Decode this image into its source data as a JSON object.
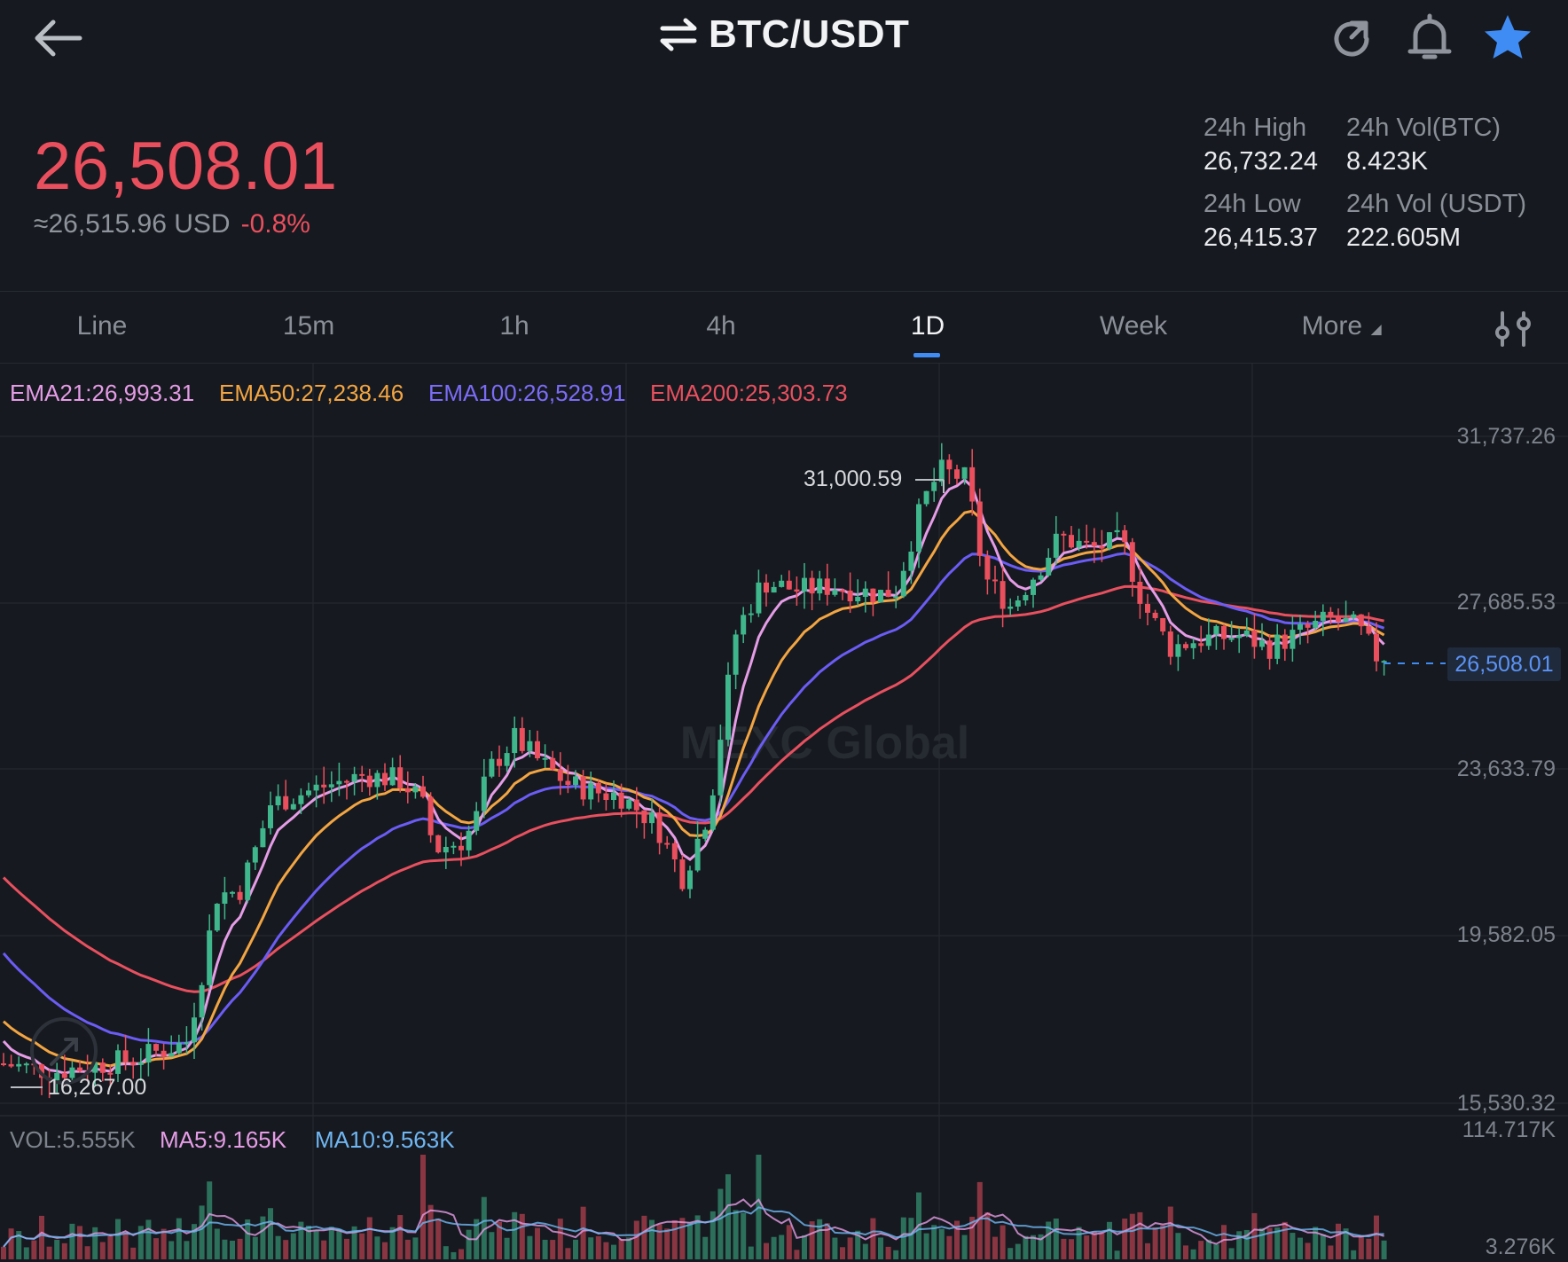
{
  "header": {
    "pair": "BTC/USDT",
    "back_icon": "arrow-left-icon",
    "swap_icon": "swap-arrows-icon",
    "refresh_icon": "refresh-icon",
    "bell_icon": "bell-icon",
    "star_icon": "star-icon"
  },
  "price": {
    "last": "26,508.01",
    "usd_approx": "≈26,515.96 USD",
    "change": "-0.8%"
  },
  "stats": {
    "high_label": "24h High",
    "high_value": "26,732.24",
    "low_label": "24h Low",
    "low_value": "26,415.37",
    "vol_btc_label": "24h Vol(BTC)",
    "vol_btc_value": "8.423K",
    "vol_usdt_label": "24h Vol (USDT)",
    "vol_usdt_value": "222.605M"
  },
  "tabs": {
    "line": "Line",
    "m15": "15m",
    "h1": "1h",
    "h4": "4h",
    "d1": "1D",
    "week": "Week",
    "more": "More",
    "active": "1D",
    "settings_icon": "indicator-settings-icon"
  },
  "ema_legend": {
    "ema21": "EMA21:26,993.31",
    "ema50": "EMA50:27,238.46",
    "ema100": "EMA100:26,528.91",
    "ema200": "EMA200:25,303.73"
  },
  "colors": {
    "up": "#3fb68b",
    "down": "#ea4f5e",
    "ema21": "#e59ce6",
    "ema50": "#f2a542",
    "ema100": "#6b5cf5",
    "ema200": "#e8505f",
    "ma5": "#e59ce6",
    "ma10": "#6fb6f2",
    "accent": "#3f8cf5"
  },
  "axis": {
    "y_labels": [
      "31,737.26",
      "27,685.53",
      "23,633.79",
      "19,582.05",
      "15,530.32"
    ],
    "current_price_tag": "26,508.01",
    "high_marker": "31,000.59",
    "low_marker": "16,267.00",
    "vol_top": "114.717K",
    "vol_bottom": "3.276K"
  },
  "vol_legend": {
    "vol": "VOL:5.555K",
    "ma5": "MA5:9.165K",
    "ma10": "MA10:9.563K"
  },
  "watermark": "MEXC Global",
  "chart_data": {
    "type": "candlestick",
    "ylim": [
      15530.32,
      31737.26
    ],
    "y_ticks": [
      31737.26,
      27685.53,
      23633.79,
      19582.05,
      15530.32
    ],
    "current_price": 26508.01,
    "max_high": 31000.59,
    "min_low": 16267.0,
    "series": [
      {
        "name": "EMA21",
        "last": 26993.31
      },
      {
        "name": "EMA50",
        "last": 27238.46
      },
      {
        "name": "EMA100",
        "last": 26528.91
      },
      {
        "name": "EMA200",
        "last": 25303.73
      }
    ],
    "volume": {
      "ylim": [
        3276,
        114717
      ],
      "last": 5555,
      "ma5": 9165,
      "ma10": 9563
    }
  }
}
